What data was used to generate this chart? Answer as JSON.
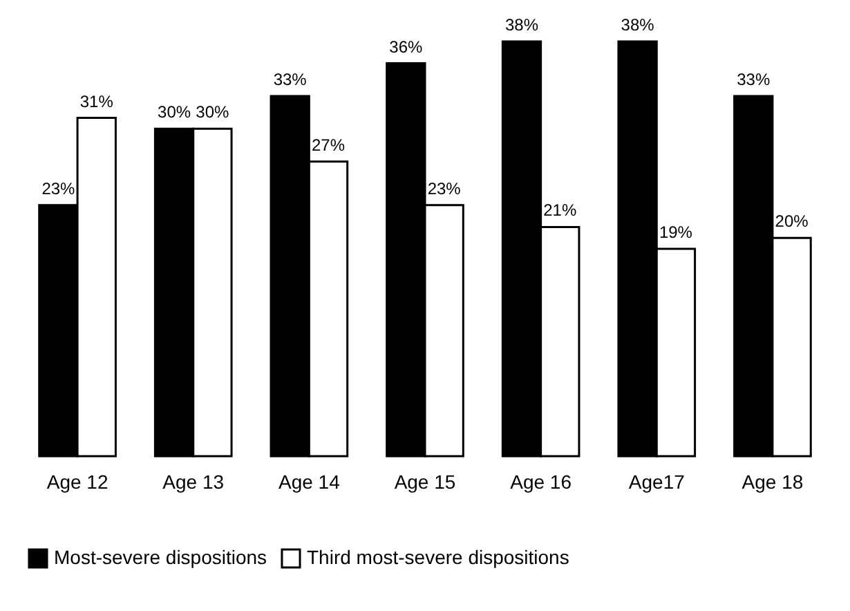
{
  "chart_data": {
    "type": "bar",
    "categories": [
      "Age 12",
      "Age 13",
      "Age 14",
      "Age 15",
      "Age 16",
      "Age17",
      "Age 18"
    ],
    "series": [
      {
        "name": "Most-severe dispositions",
        "color": "#000000",
        "values": [
          23,
          30,
          33,
          36,
          38,
          38,
          33
        ],
        "value_labels": [
          "23%",
          "30%",
          "33%",
          "36%",
          "38%",
          "38%",
          "33%"
        ]
      },
      {
        "name": "Third most-severe dispositions",
        "color": "#ffffff",
        "values": [
          31,
          30,
          27,
          23,
          21,
          19,
          20
        ],
        "value_labels": [
          "31%",
          "30%",
          "27%",
          "23%",
          "21%",
          "19%",
          "20%"
        ]
      }
    ],
    "legend": "bottom"
  }
}
